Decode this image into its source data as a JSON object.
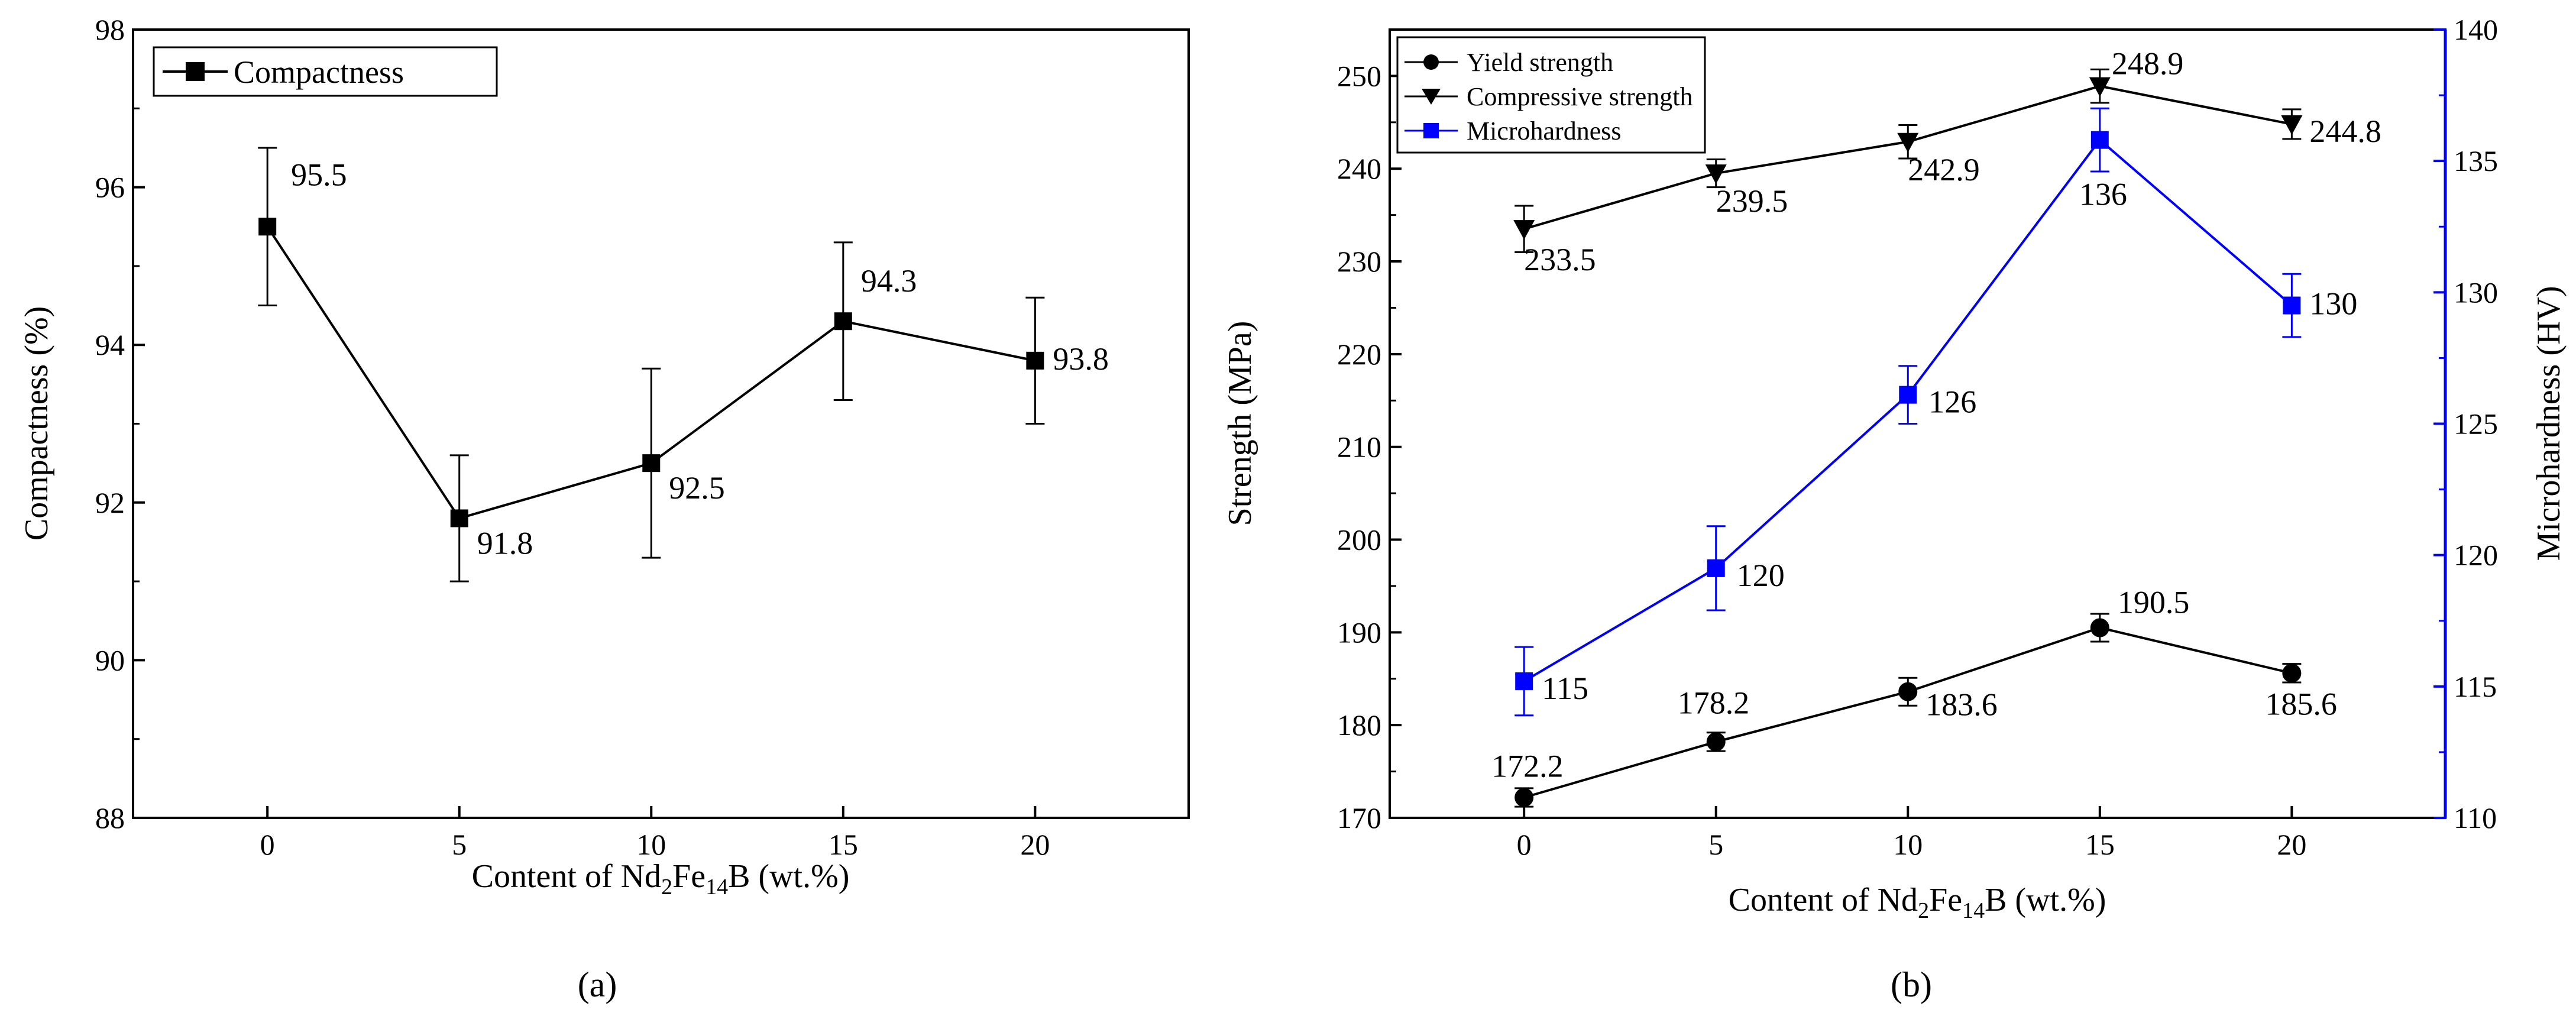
{
  "colors": {
    "black": "#000000",
    "blue": "#0000ff"
  },
  "chart_data": [
    {
      "panel_label": "(a)",
      "type": "line",
      "x_ticks": [
        "0",
        "5",
        "10",
        "15",
        "20"
      ],
      "xlim": [
        -3.5,
        24
      ],
      "xlabel": {
        "pre": "Content of Nd",
        "sub1": "2",
        "mid": "Fe",
        "sub2": "14",
        "post": "B (wt.%)"
      },
      "ylabel": "Compactness (%)",
      "ylim": [
        88,
        98
      ],
      "y_ticks": [
        "88",
        "90",
        "92",
        "94",
        "96",
        "98"
      ],
      "legend_position": "top-left",
      "series": [
        {
          "name": "Compactness",
          "marker": "square",
          "color": "#000000",
          "x": [
            0,
            5,
            10,
            15,
            20
          ],
          "y": [
            95.5,
            91.8,
            92.5,
            94.3,
            93.8
          ],
          "err": [
            1.0,
            0.8,
            1.2,
            1.0,
            0.8
          ],
          "labels": [
            "95.5",
            "91.8",
            "92.5",
            "94.3",
            "93.8"
          ]
        }
      ]
    },
    {
      "panel_label": "(b)",
      "type": "line",
      "x_ticks": [
        "0",
        "5",
        "10",
        "15",
        "20"
      ],
      "xlim": [
        -3.5,
        24
      ],
      "xlabel": {
        "pre": "Content of Nd",
        "sub1": "2",
        "mid": "Fe",
        "sub2": "14",
        "post": "B (wt.%)"
      },
      "ylabel_left": "Strength  (MPa)",
      "ylim_left": [
        170,
        255
      ],
      "y_ticks_left": [
        "170",
        "180",
        "190",
        "200",
        "210",
        "220",
        "230",
        "240",
        "250"
      ],
      "ylabel_right": "Microhardness  (HV)",
      "ylim_right": [
        110,
        140
      ],
      "y_ticks_right": [
        "110",
        "115",
        "120",
        "125",
        "130",
        "135",
        "140"
      ],
      "legend_position": "top-left",
      "series": [
        {
          "name": "Yield strength",
          "marker": "circle",
          "axis": "left",
          "color": "#000000",
          "x": [
            0,
            5,
            10,
            15,
            20
          ],
          "y": [
            172.2,
            178.2,
            183.6,
            190.5,
            185.6
          ],
          "err": [
            1.0,
            1.0,
            1.5,
            1.5,
            1.0
          ],
          "labels": [
            "172.2",
            "178.2",
            "183.6",
            "190.5",
            "185.6"
          ]
        },
        {
          "name": "Compressive strength",
          "marker": "triangle-down",
          "axis": "left",
          "color": "#000000",
          "x": [
            0,
            5,
            10,
            15,
            20
          ],
          "y": [
            233.5,
            239.5,
            242.9,
            248.9,
            244.8
          ],
          "err": [
            2.5,
            1.5,
            1.8,
            1.8,
            1.6
          ],
          "labels": [
            "233.5",
            "239.5",
            "242.9",
            "248.9",
            "244.8"
          ]
        },
        {
          "name": "Microhardness",
          "marker": "square",
          "axis": "right",
          "color": "#0000ff",
          "x": [
            0,
            5,
            10,
            15,
            20
          ],
          "y": [
            115.2,
            119.5,
            126.1,
            135.8,
            129.5
          ],
          "err": [
            1.3,
            1.6,
            1.1,
            1.2,
            1.2
          ],
          "labels": [
            "115",
            "120",
            "126",
            "136",
            "130"
          ]
        }
      ]
    }
  ]
}
